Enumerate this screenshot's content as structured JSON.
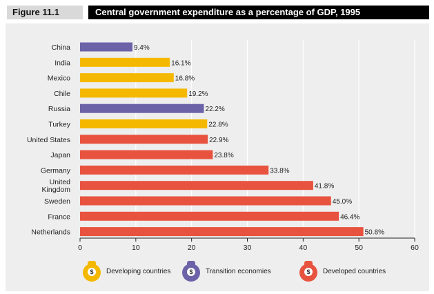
{
  "header": {
    "figure_label": "Figure 11.1",
    "title": "Central government expenditure as a percentage of GDP, 1995"
  },
  "colors": {
    "developing": "#f5b800",
    "transition": "#6b62a8",
    "developed": "#e8533f",
    "grid": "#ffffff",
    "panel": "#eeeeee"
  },
  "legend": {
    "developing": "Developing countries",
    "transition": "Transition economies",
    "developed": "Developed countries"
  },
  "chart_data": {
    "type": "bar",
    "orientation": "horizontal",
    "title": "Central government expenditure as a percentage of GDP, 1995",
    "xlabel": "",
    "ylabel": "",
    "xlim": [
      0,
      60
    ],
    "xticks": [
      0,
      10,
      20,
      30,
      40,
      50,
      60
    ],
    "grid": true,
    "categories": [
      "China",
      "India",
      "Mexico",
      "Chile",
      "Russia",
      "Turkey",
      "United States",
      "Japan",
      "Germany",
      "United Kingdom",
      "Sweden",
      "France",
      "Netherlands"
    ],
    "category_lines": [
      [
        "China"
      ],
      [
        "India"
      ],
      [
        "Mexico"
      ],
      [
        "Chile"
      ],
      [
        "Russia"
      ],
      [
        "Turkey"
      ],
      [
        "United States"
      ],
      [
        "Japan"
      ],
      [
        "Germany"
      ],
      [
        "United",
        "Kingdom"
      ],
      [
        "Sweden"
      ],
      [
        "France"
      ],
      [
        "Netherlands"
      ]
    ],
    "values": [
      9.4,
      16.1,
      16.8,
      19.2,
      22.2,
      22.8,
      22.9,
      23.8,
      33.8,
      41.8,
      45.0,
      46.4,
      50.8
    ],
    "value_labels": [
      "9.4%",
      "16.1%",
      "16.8%",
      "19.2%",
      "22.2%",
      "22.8%",
      "22.9%",
      "23.8%",
      "33.8%",
      "41.8%",
      "45.0%",
      "46.4%",
      "50.8%"
    ],
    "groups": [
      "transition",
      "developing",
      "developing",
      "developing",
      "transition",
      "developing",
      "developed",
      "developed",
      "developed",
      "developed",
      "developed",
      "developed",
      "developed"
    ],
    "legend_position": "bottom"
  }
}
